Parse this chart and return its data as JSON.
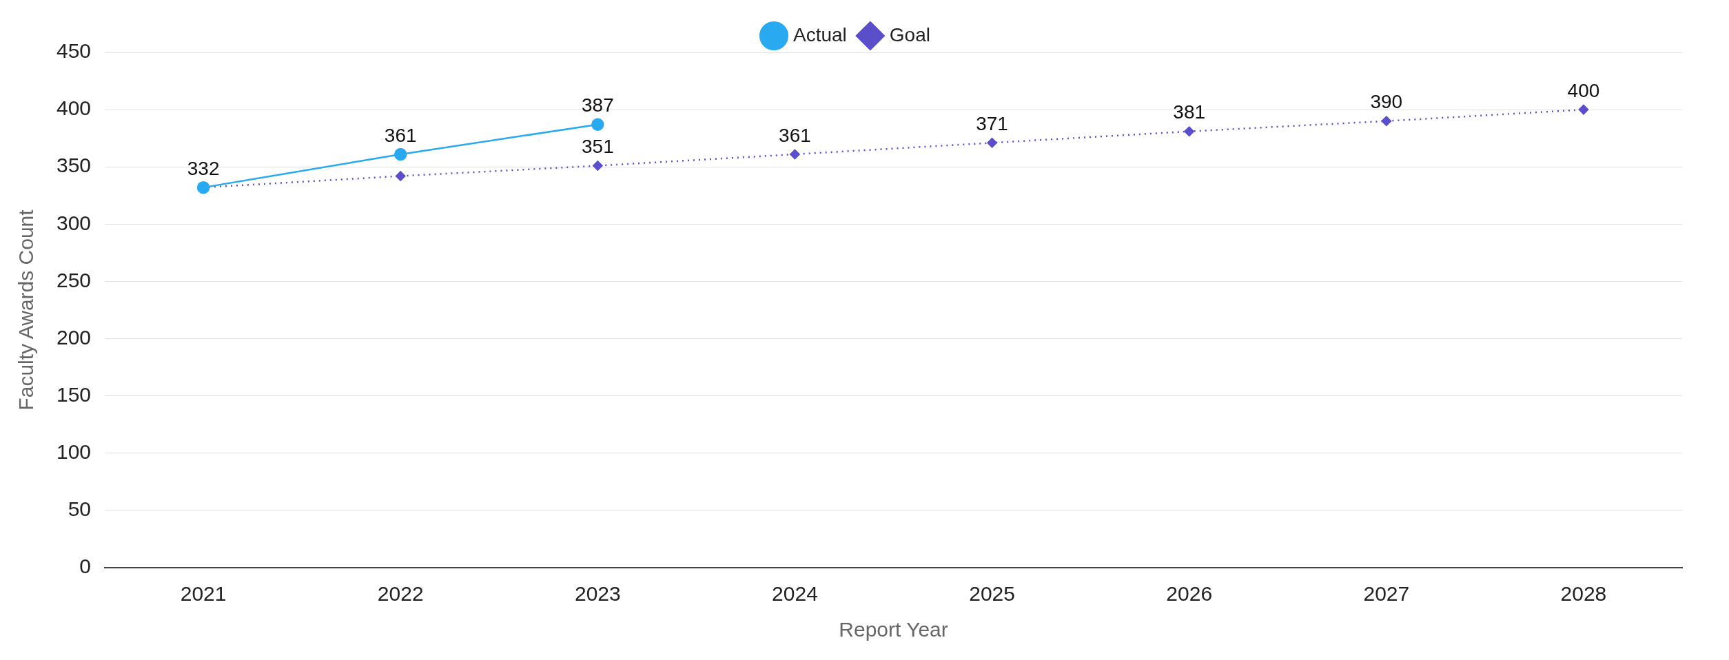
{
  "chart_data": {
    "type": "line",
    "xlabel": "Report Year",
    "ylabel": "Faculty Awards Count",
    "categories": [
      "2021",
      "2022",
      "2023",
      "2024",
      "2025",
      "2026",
      "2027",
      "2028"
    ],
    "series": [
      {
        "name": "Actual",
        "color": "#29a9f0",
        "marker": "circle",
        "line_style": "solid",
        "values": [
          332,
          361,
          387,
          null,
          null,
          null,
          null,
          null
        ],
        "value_labels": [
          "332",
          "361",
          "387",
          null,
          null,
          null,
          null,
          null
        ]
      },
      {
        "name": "Goal",
        "color": "#5b4fc9",
        "marker": "diamond",
        "line_style": "dotted",
        "values": [
          332,
          342,
          351,
          361,
          371,
          381,
          390,
          400
        ],
        "value_labels": [
          null,
          null,
          "351",
          "361",
          "371",
          "381",
          "390",
          "400"
        ]
      }
    ],
    "ylim": [
      0,
      450
    ],
    "yticks": [
      0,
      50,
      100,
      150,
      200,
      250,
      300,
      350,
      400,
      450
    ],
    "grid": "y",
    "legend": "top"
  }
}
